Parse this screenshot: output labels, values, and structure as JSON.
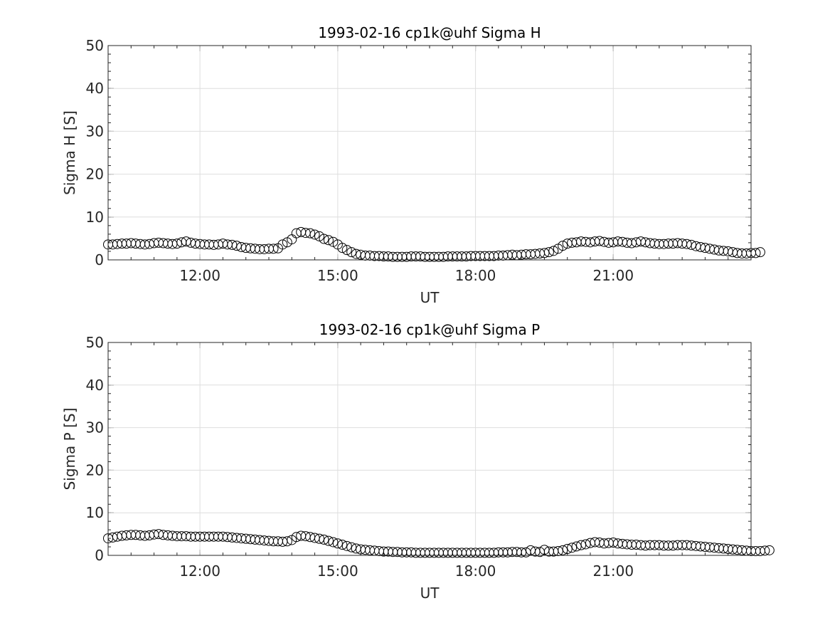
{
  "chart_data": [
    {
      "type": "scatter",
      "title": "1993-02-16  cp1k@uhf Sigma H",
      "xlabel": "UT",
      "ylabel": "Sigma H [S]",
      "xlim_hours": [
        10.0,
        24.0
      ],
      "ylim": [
        0,
        50
      ],
      "x_ticks": [
        "12:00",
        "15:00",
        "18:00",
        "21:00"
      ],
      "y_ticks": [
        "0",
        "10",
        "20",
        "30",
        "40",
        "50"
      ],
      "grid": true,
      "marker": "open-circle",
      "x_start_hour": 10.0,
      "x_step_hour": 0.1,
      "values": [
        3.6,
        3.6,
        3.7,
        3.8,
        3.8,
        3.9,
        3.8,
        3.7,
        3.6,
        3.7,
        3.9,
        4.0,
        3.9,
        3.8,
        3.7,
        3.8,
        4.1,
        4.3,
        4.0,
        3.8,
        3.7,
        3.6,
        3.6,
        3.5,
        3.6,
        3.8,
        3.6,
        3.5,
        3.3,
        3.0,
        2.8,
        2.7,
        2.6,
        2.5,
        2.5,
        2.6,
        2.6,
        2.7,
        3.6,
        4.1,
        4.8,
        6.2,
        6.5,
        6.3,
        6.2,
        5.9,
        5.5,
        4.9,
        4.6,
        4.2,
        3.6,
        2.8,
        2.3,
        1.8,
        1.4,
        1.2,
        1.0,
        1.0,
        0.9,
        0.9,
        0.8,
        0.8,
        0.7,
        0.7,
        0.7,
        0.7,
        0.8,
        0.8,
        0.8,
        0.7,
        0.7,
        0.7,
        0.7,
        0.7,
        0.8,
        0.8,
        0.8,
        0.8,
        0.8,
        0.9,
        0.9,
        0.9,
        0.9,
        0.9,
        0.9,
        1.0,
        1.0,
        1.1,
        1.2,
        1.1,
        1.2,
        1.3,
        1.3,
        1.4,
        1.5,
        1.6,
        1.8,
        2.1,
        2.6,
        3.3,
        3.8,
        4.0,
        4.1,
        4.3,
        4.2,
        4.1,
        4.3,
        4.4,
        4.2,
        4.0,
        4.1,
        4.3,
        4.2,
        4.0,
        3.9,
        4.1,
        4.3,
        4.1,
        3.9,
        3.8,
        3.7,
        3.7,
        3.8,
        3.8,
        3.9,
        3.8,
        3.7,
        3.5,
        3.2,
        3.0,
        2.8,
        2.6,
        2.4,
        2.2,
        2.1,
        2.0,
        1.8,
        1.6,
        1.5,
        1.5,
        1.6,
        1.6,
        1.8
      ]
    },
    {
      "type": "scatter",
      "title": "1993-02-16  cp1k@uhf Sigma P",
      "xlabel": "UT",
      "ylabel": "Sigma P [S]",
      "xlim_hours": [
        10.0,
        24.0
      ],
      "ylim": [
        0,
        50
      ],
      "x_ticks": [
        "12:00",
        "15:00",
        "18:00",
        "21:00"
      ],
      "y_ticks": [
        "0",
        "10",
        "20",
        "30",
        "40",
        "50"
      ],
      "grid": true,
      "marker": "open-circle",
      "x_start_hour": 10.0,
      "x_step_hour": 0.1,
      "values": [
        4.0,
        4.2,
        4.4,
        4.6,
        4.7,
        4.8,
        4.8,
        4.7,
        4.6,
        4.7,
        4.9,
        5.0,
        4.8,
        4.7,
        4.6,
        4.5,
        4.5,
        4.5,
        4.4,
        4.4,
        4.4,
        4.4,
        4.4,
        4.4,
        4.4,
        4.4,
        4.3,
        4.2,
        4.1,
        4.0,
        3.9,
        3.8,
        3.7,
        3.6,
        3.5,
        3.4,
        3.3,
        3.3,
        3.2,
        3.3,
        3.6,
        4.3,
        4.6,
        4.5,
        4.3,
        4.1,
        3.9,
        3.7,
        3.4,
        3.1,
        2.8,
        2.5,
        2.2,
        1.9,
        1.6,
        1.4,
        1.3,
        1.2,
        1.1,
        1.0,
        0.9,
        0.9,
        0.8,
        0.8,
        0.7,
        0.7,
        0.7,
        0.6,
        0.6,
        0.6,
        0.6,
        0.6,
        0.6,
        0.6,
        0.6,
        0.6,
        0.6,
        0.6,
        0.6,
        0.6,
        0.6,
        0.6,
        0.6,
        0.6,
        0.6,
        0.7,
        0.7,
        0.7,
        0.8,
        0.8,
        0.7,
        0.7,
        1.2,
        0.9,
        0.8,
        1.3,
        0.9,
        0.9,
        1.0,
        1.2,
        1.5,
        1.8,
        2.1,
        2.4,
        2.6,
        2.9,
        3.1,
        3.0,
        2.8,
        2.9,
        3.0,
        2.8,
        2.7,
        2.6,
        2.5,
        2.5,
        2.4,
        2.3,
        2.4,
        2.4,
        2.4,
        2.3,
        2.3,
        2.3,
        2.4,
        2.4,
        2.4,
        2.3,
        2.2,
        2.1,
        2.0,
        1.9,
        1.8,
        1.7,
        1.6,
        1.5,
        1.4,
        1.3,
        1.2,
        1.1,
        1.0,
        1.0,
        1.0,
        1.1,
        1.2
      ]
    }
  ]
}
